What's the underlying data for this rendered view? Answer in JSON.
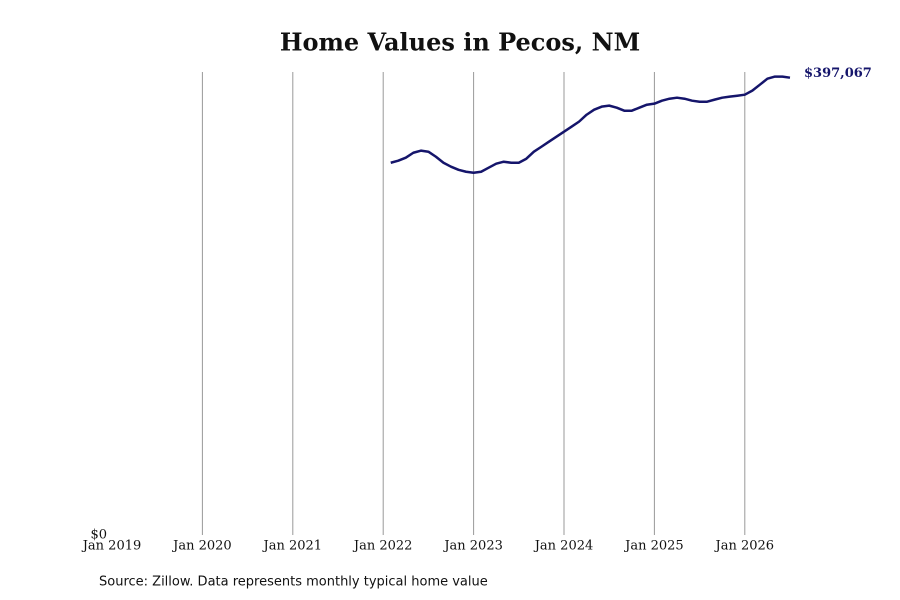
{
  "chart_data": {
    "type": "line",
    "title": "Home Values in Pecos, NM",
    "source": "Source: Zillow. Data represents monthly typical home value",
    "x": [
      "Feb 2022",
      "Mar 2022",
      "Apr 2022",
      "May 2022",
      "Jun 2022",
      "Jul 2022",
      "Aug 2022",
      "Sep 2022",
      "Oct 2022",
      "Nov 2022",
      "Dec 2022",
      "Jan 2023",
      "Feb 2023",
      "Mar 2023",
      "Apr 2023",
      "May 2023",
      "Jun 2023",
      "Jul 2023",
      "Aug 2023",
      "Sep 2023",
      "Oct 2023",
      "Nov 2023",
      "Dec 2023",
      "Jan 2024",
      "Feb 2024",
      "Mar 2024",
      "Apr 2024",
      "May 2024",
      "Jun 2024",
      "Jul 2024",
      "Aug 2024",
      "Sep 2024",
      "Oct 2024",
      "Nov 2024",
      "Dec 2024",
      "Jan 2025",
      "Feb 2025",
      "Mar 2025",
      "Apr 2025",
      "May 2025",
      "Jun 2025",
      "Jul 2025",
      "Aug 2025",
      "Sep 2025",
      "Oct 2025",
      "Nov 2025",
      "Dec 2025",
      "Jan 2026",
      "Feb 2026",
      "Mar 2026",
      "Apr 2026",
      "May 2026",
      "Jun 2026",
      "Jul 2026"
    ],
    "series": [
      {
        "color": "#15156b",
        "values": [
          323200,
          325000,
          327600,
          331900,
          333700,
          332800,
          328400,
          323200,
          319800,
          317100,
          315400,
          314500,
          315400,
          318900,
          322400,
          324100,
          323200,
          323200,
          326700,
          332800,
          337100,
          341500,
          345800,
          350200,
          354500,
          358900,
          364900,
          369300,
          371900,
          372800,
          371000,
          368400,
          368400,
          371000,
          373600,
          374500,
          377100,
          378800,
          379700,
          378800,
          377100,
          376200,
          376200,
          378000,
          379700,
          380600,
          381400,
          382300,
          385800,
          391000,
          396200,
          398000,
          398000,
          397067
        ],
        "value_labels": [
          null,
          null,
          null,
          null,
          null,
          null,
          null,
          null,
          null,
          null,
          null,
          null,
          null,
          null,
          null,
          null,
          null,
          null,
          null,
          null,
          null,
          null,
          null,
          null,
          null,
          null,
          null,
          null,
          null,
          null,
          null,
          null,
          null,
          null,
          null,
          null,
          null,
          null,
          null,
          null,
          null,
          null,
          null,
          null,
          null,
          null,
          null,
          null,
          null,
          null,
          null,
          null,
          null,
          "$397,067"
        ]
      }
    ],
    "xlim": [
      "Jan 2019",
      "Jul 2026"
    ],
    "xticks": [
      "Jan 2019",
      "Jan 2020",
      "Jan 2021",
      "Jan 2022",
      "Jan 2023",
      "Jan 2024",
      "Jan 2025",
      "Jan 2026"
    ],
    "ylim": [
      0,
      402000
    ],
    "yticks": [
      {
        "value": 0,
        "label": "$0"
      }
    ],
    "grid": true
  }
}
